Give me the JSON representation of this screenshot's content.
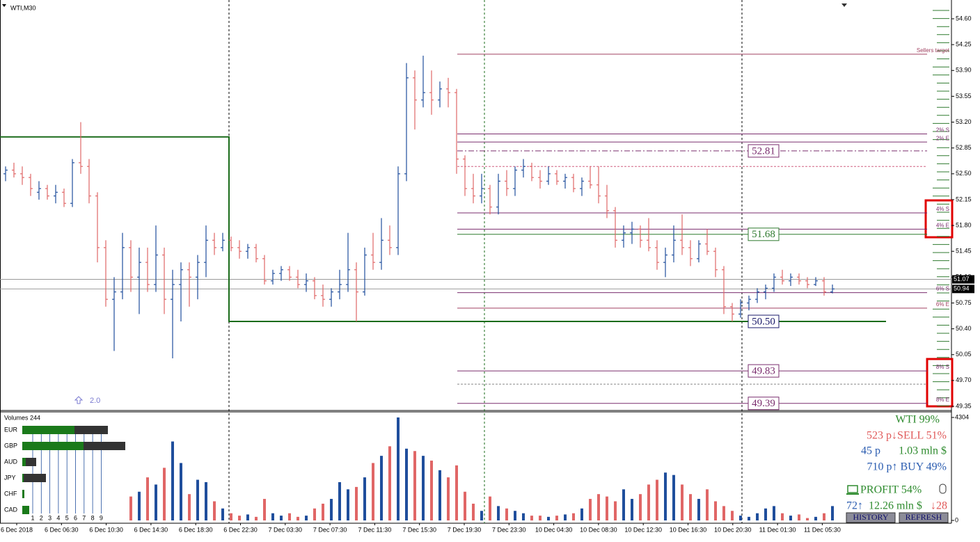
{
  "header": {
    "symbol": "WTI,M30",
    "marker_label": "2.0"
  },
  "price_axis": {
    "ylim": [
      49.35,
      54.6
    ],
    "ticks": [
      {
        "value": 54.6,
        "label": "54.60"
      },
      {
        "value": 54.25,
        "label": "54.25"
      },
      {
        "value": 53.9,
        "label": "53.90"
      },
      {
        "value": 53.55,
        "label": "53.55"
      },
      {
        "value": 53.2,
        "label": "53.20"
      },
      {
        "value": 52.85,
        "label": "52.85"
      },
      {
        "value": 52.5,
        "label": "52.50"
      },
      {
        "value": 52.15,
        "label": "52.15"
      },
      {
        "value": 51.8,
        "label": "51.80"
      },
      {
        "value": 51.45,
        "label": "51.45"
      },
      {
        "value": 51.1,
        "label": "51.10"
      },
      {
        "value": 50.75,
        "label": "50.75"
      },
      {
        "value": 50.4,
        "label": "50.40"
      },
      {
        "value": 50.05,
        "label": "50.05"
      },
      {
        "value": 49.7,
        "label": "49.70"
      },
      {
        "value": 49.35,
        "label": "49.35"
      }
    ],
    "price_labels": [
      {
        "value": 51.07,
        "label": "51.07"
      },
      {
        "value": 50.94,
        "label": "50.94"
      }
    ]
  },
  "bars": [
    [
      52.5,
      52.6,
      52.4,
      52.55
    ],
    [
      52.55,
      52.65,
      52.45,
      52.5
    ],
    [
      52.5,
      52.6,
      52.35,
      52.45
    ],
    [
      52.45,
      52.5,
      52.2,
      52.3
    ],
    [
      52.25,
      52.4,
      52.15,
      52.3
    ],
    [
      52.3,
      52.35,
      52.15,
      52.2
    ],
    [
      52.2,
      52.35,
      52.1,
      52.25
    ],
    [
      52.25,
      52.3,
      52.05,
      52.1
    ],
    [
      52.1,
      52.7,
      52.05,
      52.65
    ],
    [
      52.65,
      53.2,
      52.5,
      52.6
    ],
    [
      52.6,
      52.7,
      52.1,
      52.2
    ],
    [
      52.2,
      52.25,
      51.3,
      51.5
    ],
    [
      51.5,
      51.6,
      50.7,
      50.8
    ],
    [
      50.8,
      51.1,
      50.1,
      50.9
    ],
    [
      50.9,
      51.7,
      50.8,
      51.5
    ],
    [
      51.5,
      51.6,
      50.9,
      51.1
    ],
    [
      51.1,
      51.5,
      50.6,
      51.3
    ],
    [
      51.3,
      51.5,
      50.9,
      51.0
    ],
    [
      51.0,
      51.8,
      50.9,
      51.4
    ],
    [
      51.4,
      51.5,
      50.6,
      50.8
    ],
    [
      50.8,
      51.2,
      50.0,
      51.0
    ],
    [
      51.0,
      51.3,
      50.5,
      51.2
    ],
    [
      51.2,
      51.3,
      50.7,
      51.1
    ],
    [
      51.1,
      51.4,
      50.8,
      51.3
    ],
    [
      51.3,
      51.8,
      51.1,
      51.6
    ],
    [
      51.6,
      51.7,
      51.4,
      51.5
    ],
    [
      51.5,
      51.7,
      51.45,
      51.6
    ],
    [
      51.6,
      51.65,
      51.45,
      51.5
    ],
    [
      51.5,
      51.6,
      51.35,
      51.45
    ],
    [
      51.45,
      51.55,
      51.35,
      51.5
    ],
    [
      51.5,
      51.55,
      51.3,
      51.35
    ],
    [
      51.35,
      51.4,
      51.0,
      51.05
    ],
    [
      51.05,
      51.2,
      51.0,
      51.15
    ],
    [
      51.15,
      51.25,
      51.05,
      51.2
    ],
    [
      51.2,
      51.25,
      51.05,
      51.1
    ],
    [
      51.1,
      51.2,
      50.95,
      51.0
    ],
    [
      51.0,
      51.15,
      50.9,
      51.05
    ],
    [
      51.05,
      51.1,
      50.8,
      50.85
    ],
    [
      50.85,
      51.0,
      50.7,
      50.8
    ],
    [
      50.8,
      50.95,
      50.7,
      50.9
    ],
    [
      50.9,
      51.2,
      50.8,
      51.0
    ],
    [
      51.0,
      51.7,
      50.9,
      51.2
    ],
    [
      51.2,
      51.3,
      50.5,
      50.9
    ],
    [
      50.9,
      51.5,
      50.85,
      51.4
    ],
    [
      51.4,
      51.7,
      51.2,
      51.3
    ],
    [
      51.3,
      51.9,
      51.2,
      51.6
    ],
    [
      51.6,
      51.8,
      51.4,
      51.5
    ],
    [
      51.5,
      52.6,
      51.4,
      52.5
    ],
    [
      52.5,
      54.0,
      52.4,
      53.8
    ],
    [
      53.8,
      53.9,
      53.1,
      53.5
    ],
    [
      53.5,
      54.1,
      53.4,
      53.6
    ],
    [
      53.6,
      53.9,
      53.3,
      53.5
    ],
    [
      53.5,
      53.75,
      53.4,
      53.65
    ],
    [
      53.65,
      53.8,
      53.4,
      53.6
    ],
    [
      53.6,
      53.65,
      52.5,
      52.7
    ],
    [
      52.7,
      52.75,
      52.2,
      52.3
    ],
    [
      52.3,
      52.5,
      52.1,
      52.2
    ],
    [
      52.2,
      52.5,
      52.1,
      52.3
    ],
    [
      52.3,
      52.35,
      51.95,
      52.05
    ],
    [
      52.05,
      52.5,
      51.95,
      52.4
    ],
    [
      52.4,
      52.55,
      52.2,
      52.3
    ],
    [
      52.3,
      52.6,
      52.2,
      52.55
    ],
    [
      52.55,
      52.7,
      52.45,
      52.6
    ],
    [
      52.6,
      52.65,
      52.4,
      52.45
    ],
    [
      52.45,
      52.55,
      52.3,
      52.4
    ],
    [
      52.4,
      52.6,
      52.35,
      52.5
    ],
    [
      52.5,
      52.55,
      52.35,
      52.4
    ],
    [
      52.4,
      52.5,
      52.3,
      52.45
    ],
    [
      52.45,
      52.5,
      52.25,
      52.3
    ],
    [
      52.3,
      52.45,
      52.2,
      52.4
    ],
    [
      52.4,
      52.6,
      52.3,
      52.35
    ],
    [
      52.35,
      52.6,
      52.1,
      52.2
    ],
    [
      52.2,
      52.35,
      51.9,
      52.0
    ],
    [
      52.0,
      52.05,
      51.5,
      51.6
    ],
    [
      51.6,
      51.8,
      51.5,
      51.7
    ],
    [
      51.7,
      51.85,
      51.55,
      51.75
    ],
    [
      51.75,
      51.8,
      51.5,
      51.6
    ],
    [
      51.6,
      51.9,
      51.45,
      51.5
    ],
    [
      51.5,
      51.6,
      51.2,
      51.3
    ],
    [
      51.3,
      51.5,
      51.1,
      51.4
    ],
    [
      51.4,
      51.8,
      51.3,
      51.6
    ],
    [
      51.6,
      51.95,
      51.4,
      51.5
    ],
    [
      51.5,
      51.6,
      51.25,
      51.35
    ],
    [
      51.35,
      51.6,
      51.3,
      51.55
    ],
    [
      51.55,
      51.75,
      51.4,
      51.45
    ],
    [
      51.45,
      51.5,
      51.1,
      51.2
    ],
    [
      51.2,
      51.25,
      50.6,
      50.7
    ],
    [
      50.7,
      50.75,
      50.5,
      50.6
    ],
    [
      50.6,
      50.8,
      50.55,
      50.75
    ],
    [
      50.75,
      50.85,
      50.65,
      50.8
    ],
    [
      50.8,
      50.95,
      50.75,
      50.9
    ],
    [
      50.9,
      51.0,
      50.8,
      50.95
    ],
    [
      50.95,
      51.15,
      50.9,
      51.1
    ],
    [
      51.1,
      51.2,
      51.0,
      51.05
    ],
    [
      51.05,
      51.15,
      50.98,
      51.1
    ],
    [
      51.1,
      51.15,
      51.0,
      51.05
    ],
    [
      51.05,
      51.1,
      50.95,
      51.0
    ],
    [
      51.0,
      51.1,
      50.98,
      51.05
    ],
    [
      51.05,
      51.1,
      50.85,
      50.9
    ],
    [
      50.9,
      51.0,
      50.88,
      50.94
    ]
  ],
  "volumes": {
    "title": "Volumes 244",
    "ylim": [
      0,
      4304
    ],
    "ticks": [
      4304,
      0
    ],
    "values": [
      null,
      null,
      null,
      null,
      null,
      null,
      null,
      null,
      null,
      null,
      null,
      null,
      null,
      null,
      null,
      1000,
      1200,
      1800,
      1500,
      2200,
      3300,
      2400,
      1100,
      1700,
      1600,
      800,
      500,
      300,
      200,
      250,
      150,
      900,
      300,
      200,
      300,
      150,
      200,
      500,
      700,
      900,
      1600,
      1300,
      1400,
      1800,
      2400,
      2700,
      3100,
      4304,
      3000,
      2900,
      2700,
      2500,
      2100,
      1800,
      2300,
      1200,
      700,
      400,
      1000,
      600,
      500,
      400,
      300,
      200,
      200,
      150,
      200,
      250,
      300,
      500,
      900,
      1100,
      1000,
      800,
      1300,
      900,
      1100,
      1500,
      1700,
      2000,
      1900,
      1500,
      1100,
      900,
      1300,
      800,
      600,
      400,
      200,
      150,
      300,
      500,
      600,
      300,
      200,
      250,
      100,
      150,
      300,
      600
    ]
  },
  "time_axis": {
    "labels": [
      "6 Dec 2018",
      "6 Dec 06:30",
      "6 Dec 10:30",
      "6 Dec 14:30",
      "6 Dec 18:30",
      "6 Dec 22:30",
      "7 Dec 03:30",
      "7 Dec 07:30",
      "7 Dec 11:30",
      "7 Dec 15:30",
      "7 Dec 19:30",
      "7 Dec 23:30",
      "10 Dec 04:30",
      "10 Dec 08:30",
      "10 Dec 12:30",
      "10 Dec 16:30",
      "10 Dec 20:30",
      "11 Dec 01:30",
      "11 Dec 05:30"
    ]
  },
  "zone": {
    "top": 53.0,
    "bottom": 50.5,
    "value_label": "50.50",
    "color": "#1a6b1a"
  },
  "levels": [
    {
      "price": 54.12,
      "label": "Sellers target",
      "color": "#a04060",
      "style": "solid"
    },
    {
      "price": 53.04,
      "label": "2% S",
      "color": "#7a2d6e",
      "style": "solid"
    },
    {
      "price": 52.93,
      "label": "2% E",
      "color": "#7a2d6e",
      "style": "solid"
    },
    {
      "price": 52.81,
      "value_label": "52.81",
      "color": "#7a2d6e",
      "style": "dashdot"
    },
    {
      "price": 52.6,
      "color": "#d06080",
      "style": "dotted"
    },
    {
      "price": 51.97,
      "label": "4% S",
      "color": "#7a2d6e",
      "style": "solid"
    },
    {
      "price": 51.75,
      "label": "4% E",
      "color": "#7a2d6e",
      "style": "solid"
    },
    {
      "price": 51.68,
      "value_label": "51.68",
      "color": "#2f7a2f",
      "style": "solid"
    },
    {
      "price": 50.89,
      "label": "6% S",
      "color": "#7a2d6e",
      "style": "solid"
    },
    {
      "price": 50.68,
      "label": "6% E",
      "color": "#a04060",
      "style": "solid"
    },
    {
      "price": 49.83,
      "label": "8% S",
      "value_label": "49.83",
      "color": "#7a2d6e",
      "style": "solid"
    },
    {
      "price": 49.65,
      "color": "#888888",
      "style": "dotted"
    },
    {
      "price": 49.39,
      "label": "8% E",
      "value_label": "49.39",
      "color": "#7a2d6e",
      "style": "solid"
    }
  ],
  "currencies": [
    {
      "name": "EUR",
      "buy": 75,
      "sell": 48
    },
    {
      "name": "GBP",
      "buy": 88,
      "sell": 60
    },
    {
      "name": "AUD",
      "buy": 5,
      "sell": 15
    },
    {
      "name": "JPY",
      "buy": 2,
      "sell": 32
    },
    {
      "name": "CHF",
      "buy": 3,
      "sell": 0
    },
    {
      "name": "CAD",
      "buy": 10,
      "sell": 0
    }
  ],
  "currency_scale": [
    1,
    2,
    3,
    4,
    5,
    6,
    7,
    8,
    9
  ],
  "stats": {
    "strength": "WTI 99%",
    "sell": "523 p↓SELL 51%",
    "points": "45 p",
    "money": "1.03 mln $",
    "buy": "710 p↑ BUY 49%",
    "profit": "PROFIT 54%",
    "up_count": "72↑",
    "volume_money": "12.26 mln $",
    "down_count": "↓28",
    "buttons": [
      "HISTORY",
      "REFRESH"
    ]
  }
}
